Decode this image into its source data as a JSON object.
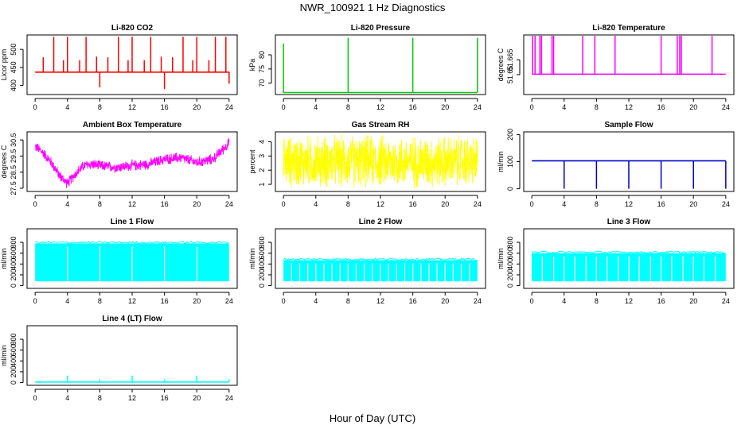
{
  "figure": {
    "title": "NWR_100921  1 Hz Diagnostics",
    "xlabel": "Hour of Day (UTC)"
  },
  "chart_data": [
    {
      "type": "line",
      "title": "Li-820 CO2",
      "ylabel": "Licor ppm",
      "color": "#ff0000",
      "x": [
        0,
        24
      ],
      "xlim": [
        -1,
        25
      ],
      "xticks": [
        0,
        4,
        8,
        12,
        16,
        20,
        24
      ],
      "ylim": [
        375,
        540
      ],
      "yticks": [
        400,
        450,
        500
      ],
      "baseline": 437,
      "spikes": [
        {
          "x": 1.0,
          "y": 478
        },
        {
          "x": 2.3,
          "y": 535
        },
        {
          "x": 3.5,
          "y": 470
        },
        {
          "x": 4.0,
          "y": 535
        },
        {
          "x": 5.5,
          "y": 470
        },
        {
          "x": 6.3,
          "y": 535
        },
        {
          "x": 7.6,
          "y": 480
        },
        {
          "x": 8.0,
          "y": 395
        },
        {
          "x": 9.0,
          "y": 478
        },
        {
          "x": 10.3,
          "y": 535
        },
        {
          "x": 11.5,
          "y": 470
        },
        {
          "x": 12.0,
          "y": 535
        },
        {
          "x": 13.5,
          "y": 470
        },
        {
          "x": 14.3,
          "y": 535
        },
        {
          "x": 15.6,
          "y": 480
        },
        {
          "x": 16.0,
          "y": 390
        },
        {
          "x": 17.0,
          "y": 478
        },
        {
          "x": 18.3,
          "y": 535
        },
        {
          "x": 19.5,
          "y": 470
        },
        {
          "x": 20.0,
          "y": 535
        },
        {
          "x": 21.5,
          "y": 470
        },
        {
          "x": 22.3,
          "y": 535
        },
        {
          "x": 23.6,
          "y": 535
        },
        {
          "x": 24.0,
          "y": 405
        }
      ]
    },
    {
      "type": "line",
      "title": "Li-820 Pressure",
      "ylabel": "kPa",
      "color": "#00cc00",
      "x": [
        0,
        24
      ],
      "xlim": [
        -1,
        25
      ],
      "xticks": [
        0,
        4,
        8,
        12,
        16,
        20,
        24
      ],
      "ylim": [
        66,
        87
      ],
      "yticks": [
        70,
        75,
        80
      ],
      "baseline": 66.7,
      "spikes": [
        {
          "x": 0.0,
          "y": 84
        },
        {
          "x": 8.0,
          "y": 86
        },
        {
          "x": 16.0,
          "y": 86
        },
        {
          "x": 24.0,
          "y": 86
        }
      ]
    },
    {
      "type": "line",
      "title": "Li-820 Temperature",
      "ylabel": "degrees C",
      "color": "#ff00ff",
      "x": [
        0,
        24
      ],
      "xlim": [
        -1,
        25
      ],
      "xticks": [
        0,
        4,
        8,
        12,
        16,
        20,
        24
      ],
      "ylim": [
        51.63,
        51.69
      ],
      "yticks": [
        51.65,
        51.665
      ],
      "baseline": 51.6505,
      "spikes": [
        {
          "x": 0.1,
          "y": 51.69
        },
        {
          "x": 0.4,
          "y": 51.69
        },
        {
          "x": 1.0,
          "y": 51.69
        },
        {
          "x": 1.2,
          "y": 51.69
        },
        {
          "x": 2.5,
          "y": 51.69
        },
        {
          "x": 2.7,
          "y": 51.69
        },
        {
          "x": 6.3,
          "y": 51.69
        },
        {
          "x": 7.8,
          "y": 51.69
        },
        {
          "x": 10.3,
          "y": 51.69
        },
        {
          "x": 16.0,
          "y": 51.69
        },
        {
          "x": 18.0,
          "y": 51.69
        },
        {
          "x": 18.3,
          "y": 51.69
        },
        {
          "x": 18.5,
          "y": 51.69
        },
        {
          "x": 22.3,
          "y": 51.69
        }
      ]
    },
    {
      "type": "line",
      "title": "Ambient Box Temperature",
      "ylabel": "degrees C",
      "color": "#ff00ff",
      "x": [
        0,
        24
      ],
      "xlim": [
        -1,
        25
      ],
      "xticks": [
        0,
        4,
        8,
        12,
        16,
        20,
        24
      ],
      "ylim": [
        27.3,
        31.0
      ],
      "yticks": [
        27.5,
        28.5,
        29.5,
        30.5
      ],
      "trend": [
        [
          0,
          30.1
        ],
        [
          1,
          29.7
        ],
        [
          2,
          29.1
        ],
        [
          3,
          28.3
        ],
        [
          4,
          27.8
        ],
        [
          5,
          28.4
        ],
        [
          6,
          28.9
        ],
        [
          7,
          29.0
        ],
        [
          8,
          28.9
        ],
        [
          10,
          28.8
        ],
        [
          12,
          28.9
        ],
        [
          14,
          29.0
        ],
        [
          16,
          29.3
        ],
        [
          18,
          29.4
        ],
        [
          20,
          29.1
        ],
        [
          22,
          29.3
        ],
        [
          24,
          30.3
        ]
      ],
      "noise": 0.55
    },
    {
      "type": "line",
      "title": "Gas Stream RH",
      "ylabel": "percent",
      "color": "#ffff00",
      "x": [
        0,
        24
      ],
      "xlim": [
        -1,
        25
      ],
      "xticks": [
        0,
        4,
        8,
        12,
        16,
        20,
        24
      ],
      "ylim": [
        0.5,
        4.7
      ],
      "yticks": [
        1,
        2,
        3,
        4
      ],
      "trend": [
        [
          0,
          2.6
        ],
        [
          24,
          2.6
        ]
      ],
      "noise": 3.0
    },
    {
      "type": "line",
      "title": "Sample Flow",
      "ylabel": "ml/min",
      "color": "#0000cc",
      "x": [
        0,
        24
      ],
      "xlim": [
        -1,
        25
      ],
      "xticks": [
        0,
        4,
        8,
        12,
        16,
        20,
        24
      ],
      "ylim": [
        -10,
        210
      ],
      "yticks": [
        0,
        100,
        200
      ],
      "baseline": 103,
      "spikes": [
        {
          "x": 4.0,
          "y": 0
        },
        {
          "x": 8.0,
          "y": 0
        },
        {
          "x": 12.0,
          "y": 0
        },
        {
          "x": 16.0,
          "y": 0
        },
        {
          "x": 20.0,
          "y": 0
        },
        {
          "x": 24.0,
          "y": 0
        }
      ]
    },
    {
      "type": "area",
      "title": "Line 1 Flow",
      "ylabel": "ml/min",
      "color": "#00ffff",
      "x": [
        0,
        24
      ],
      "xlim": [
        -1,
        25
      ],
      "xticks": [
        0,
        4,
        8,
        12,
        16,
        20,
        24
      ],
      "ylim": [
        -50,
        1050
      ],
      "yticks": [
        0,
        200,
        400,
        600,
        800
      ],
      "band": [
        80,
        780
      ],
      "gaps": [
        4,
        8,
        12,
        16,
        20
      ]
    },
    {
      "type": "area",
      "title": "Line 2 Flow",
      "ylabel": "ml/min",
      "color": "#00ffff",
      "x": [
        0,
        24
      ],
      "xlim": [
        -1,
        25
      ],
      "xticks": [
        0,
        4,
        8,
        12,
        16,
        20,
        24
      ],
      "ylim": [
        -50,
        1050
      ],
      "yticks": [
        0,
        200,
        400,
        600,
        800
      ],
      "band": [
        80,
        470
      ],
      "gaps": [
        1,
        2,
        3,
        4,
        5,
        6,
        7,
        8,
        9,
        10,
        11,
        12,
        13,
        14,
        15,
        16,
        17,
        18,
        19,
        20,
        21,
        22,
        23
      ]
    },
    {
      "type": "area",
      "title": "Line 3 Flow",
      "ylabel": "ml/min",
      "color": "#00ffff",
      "x": [
        0,
        24
      ],
      "xlim": [
        -1,
        25
      ],
      "xticks": [
        0,
        4,
        8,
        12,
        16,
        20,
        24
      ],
      "ylim": [
        -50,
        1050
      ],
      "yticks": [
        0,
        200,
        400,
        600,
        800
      ],
      "band": [
        80,
        600
      ],
      "gaps": [
        4,
        8,
        12,
        16,
        20,
        1.3,
        2.7,
        5.3,
        6.7,
        9.3,
        10.7,
        13.3,
        14.7,
        17.3,
        18.7,
        21.3,
        22.7
      ]
    },
    {
      "type": "line",
      "title": "Line 4 (LT) Flow",
      "ylabel": "ml/min",
      "color": "#00ffff",
      "x": [
        0,
        24
      ],
      "xlim": [
        -1,
        25
      ],
      "xticks": [
        0,
        4,
        8,
        12,
        16,
        20,
        24
      ],
      "ylim": [
        -50,
        1050
      ],
      "yticks": [
        0,
        200,
        400,
        600,
        800
      ],
      "baseline": 10,
      "spikes": [
        {
          "x": 4.0,
          "y": 130
        },
        {
          "x": 8.0,
          "y": 60
        },
        {
          "x": 12.0,
          "y": 130
        },
        {
          "x": 16.0,
          "y": 60
        },
        {
          "x": 20.0,
          "y": 130
        },
        {
          "x": 24.0,
          "y": 60
        }
      ]
    }
  ]
}
